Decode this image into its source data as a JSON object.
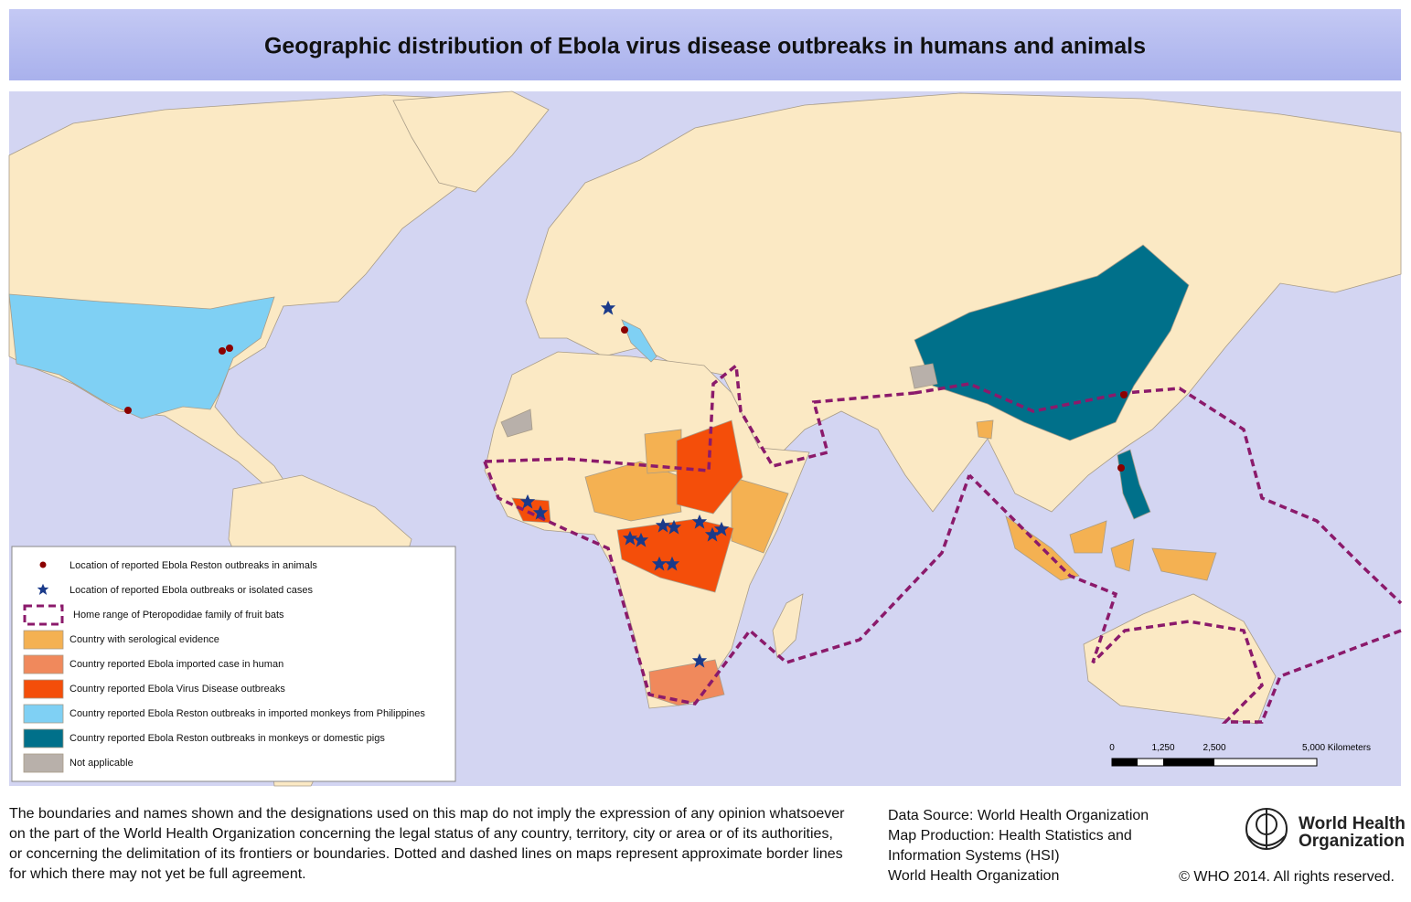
{
  "header": {
    "title": "Geographic distribution of Ebola virus disease outbreaks in humans and animals"
  },
  "legend": {
    "items": [
      "Location of reported Ebola Reston outbreaks in animals",
      "Location of reported Ebola outbreaks or isolated cases",
      "Home range of Pteropodidae family of  fruit bats",
      "Country with serological evidence",
      "Country reported Ebola imported case in human",
      "Country reported Ebola Virus Disease outbreaks",
      "Country reported Ebola Reston outbreaks in imported monkeys from Philippines",
      "Country reported Ebola Reston outbreaks in monkeys or domestic pigs",
      "Not applicable"
    ]
  },
  "scale_bar": {
    "labels": [
      "0",
      "1,250",
      "2,500",
      "5,000 Kilometers"
    ]
  },
  "footer": {
    "disclaimer": [
      "The boundaries and names shown and the designations used on this map do not imply the expression of any opinion whatsoever",
      "on the part of the World Health Organization concerning the legal status of any country, territory, city or area or of its authorities,",
      "or concerning the delimitation of its frontiers or boundaries. Dotted and dashed lines on maps represent approximate border lines",
      "for which there may not yet be full agreement."
    ],
    "source": [
      "Data Source: World Health Organization",
      "Map Production: Health Statistics and",
      "Information Systems (HSI)",
      "World Health Organization"
    ],
    "logo": [
      "World Health",
      "Organization"
    ],
    "copyright": "© WHO 2014. All rights reserved."
  }
}
